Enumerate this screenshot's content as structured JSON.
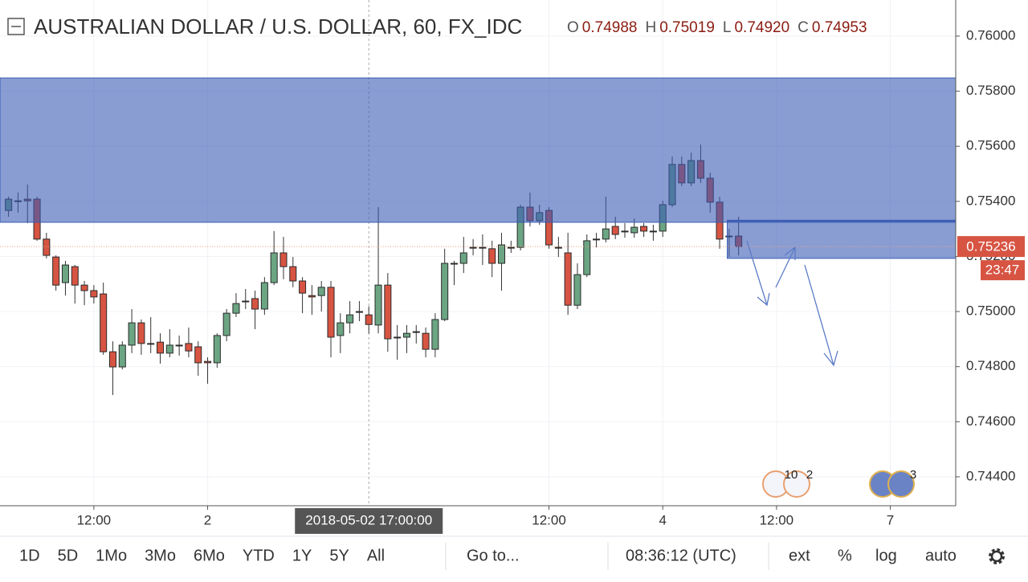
{
  "chart_data": {
    "type": "candlestick",
    "title": "AUSTRALIAN DOLLAR / U.S. DOLLAR, 60, FX_IDC",
    "ohlc_legend": [
      {
        "letter": "O",
        "value": "0.74988"
      },
      {
        "letter": "H",
        "value": "0.75019"
      },
      {
        "letter": "L",
        "value": "0.74920"
      },
      {
        "letter": "C",
        "value": "0.74953"
      }
    ],
    "categories": [
      null,
      null,
      null,
      null,
      null,
      null,
      null,
      null,
      null,
      null,
      null,
      null,
      null,
      null,
      null,
      null,
      null,
      null,
      null,
      null,
      null,
      null,
      null,
      null,
      null,
      null,
      null,
      null,
      null,
      null,
      null,
      null,
      null,
      null,
      null,
      null,
      null,
      null,
      "2018-05-02 17:00:00",
      null,
      null,
      null,
      null,
      null,
      null,
      null,
      null,
      null,
      null,
      null,
      null,
      null,
      null,
      null,
      null,
      null,
      null,
      null,
      null,
      null,
      null,
      null,
      null,
      null,
      null,
      null,
      null,
      null,
      null,
      null,
      null,
      null,
      null,
      null,
      null,
      null,
      null,
      null
    ],
    "open": [
      0.75367,
      0.75402,
      0.75408,
      0.75408,
      0.75263,
      0.75198,
      0.75105,
      0.75163,
      0.75096,
      0.75076,
      0.75064,
      0.74854,
      0.74799,
      0.74878,
      0.74959,
      0.74884,
      0.74889,
      0.74849,
      0.74878,
      0.74884,
      0.74872,
      0.74819,
      0.74814,
      0.74913,
      0.74994,
      0.75038,
      0.75047,
      0.75009,
      0.75105,
      0.75213,
      0.75163,
      0.75111,
      0.75058,
      0.75058,
      0.75088,
      0.74913,
      0.74959,
      0.75,
      0.74988,
      0.74951,
      0.75096,
      0.74907,
      0.74907,
      0.74927,
      0.74921,
      0.74863,
      0.74971,
      0.75175,
      0.75175,
      0.75233,
      0.75233,
      0.75228,
      0.75175,
      0.75233,
      0.75233,
      0.75379,
      0.7533,
      0.75367,
      0.75233,
      0.75213,
      0.75023,
      0.75134,
      0.75263,
      0.75263,
      0.75309,
      0.75292,
      0.75286,
      0.75309,
      0.75292,
      0.75292,
      0.75388,
      0.75534,
      0.75467,
      0.75548,
      0.75484,
      0.75397,
      0.75274,
      0.75274
    ],
    "high": [
      0.75417,
      0.75432,
      0.75461,
      0.75417,
      0.75286,
      0.75204,
      0.75184,
      0.75169,
      0.75111,
      0.75096,
      0.75105,
      0.74892,
      0.74892,
      0.75009,
      0.74971,
      0.7498,
      0.74921,
      0.74936,
      0.74913,
      0.74942,
      0.74892,
      0.74834,
      0.74921,
      0.75009,
      0.75067,
      0.75082,
      0.75076,
      0.75125,
      0.75292,
      0.75271,
      0.75198,
      0.75125,
      0.75096,
      0.75111,
      0.75111,
      0.74994,
      0.75038,
      0.75038,
      0.75019,
      0.75379,
      0.7514,
      0.74951,
      0.74951,
      0.74951,
      0.74942,
      0.74994,
      0.75228,
      0.75184,
      0.75271,
      0.75263,
      0.7528,
      0.75257,
      0.75286,
      0.75257,
      0.75388,
      0.75432,
      0.75388,
      0.75379,
      0.75271,
      0.75286,
      0.75175,
      0.7528,
      0.75286,
      0.75417,
      0.75344,
      0.75321,
      0.75338,
      0.75321,
      0.75315,
      0.75402,
      0.75563,
      0.75563,
      0.75577,
      0.75606,
      0.75504,
      0.75417,
      0.753,
      0.75344
    ],
    "low": [
      0.75344,
      0.75359,
      0.75321,
      0.75257,
      0.75193,
      0.75076,
      0.75058,
      0.75029,
      0.75023,
      0.75029,
      0.74843,
      0.74697,
      0.7479,
      0.74849,
      0.74843,
      0.74849,
      0.74811,
      0.74834,
      0.7484,
      0.74834,
      0.74767,
      0.74738,
      0.74796,
      0.74892,
      0.7498,
      0.75009,
      0.74936,
      0.74988,
      0.75096,
      0.75117,
      0.75088,
      0.74994,
      0.74988,
      0.75,
      0.74834,
      0.74849,
      0.74921,
      0.74965,
      0.7492,
      0.74921,
      0.74854,
      0.74825,
      0.74849,
      0.74884,
      0.74834,
      0.74834,
      0.74965,
      0.75096,
      0.7514,
      0.75204,
      0.75169,
      0.75125,
      0.75076,
      0.75213,
      0.75222,
      0.75309,
      0.75315,
      0.75228,
      0.75198,
      0.74988,
      0.75009,
      0.75125,
      0.75233,
      0.75251,
      0.75263,
      0.75268,
      0.75268,
      0.75271,
      0.75257,
      0.75271,
      0.75379,
      0.75455,
      0.75455,
      0.75467,
      0.75359,
      0.75228,
      0.75198,
      0.75204
    ],
    "close": [
      0.75408,
      0.75402,
      0.75402,
      0.75263,
      0.75204,
      0.75096,
      0.75169,
      0.75096,
      0.75076,
      0.75053,
      0.74854,
      0.74799,
      0.74878,
      0.74959,
      0.74884,
      0.74884,
      0.74849,
      0.74878,
      0.74878,
      0.74857,
      0.74814,
      0.74814,
      0.74913,
      0.74994,
      0.75029,
      0.75038,
      0.75009,
      0.75105,
      0.75213,
      0.75163,
      0.75111,
      0.75067,
      0.75053,
      0.75088,
      0.74907,
      0.74959,
      0.74988,
      0.75,
      0.74953,
      0.75096,
      0.74901,
      0.74907,
      0.74921,
      0.74927,
      0.74863,
      0.74971,
      0.75175,
      0.75175,
      0.75213,
      0.75233,
      0.75233,
      0.75175,
      0.75242,
      0.75233,
      0.75379,
      0.7533,
      0.75359,
      0.75242,
      0.75233,
      0.75023,
      0.75134,
      0.75257,
      0.75263,
      0.753,
      0.7528,
      0.75292,
      0.75306,
      0.75292,
      0.75292,
      0.75388,
      0.75534,
      0.75467,
      0.75548,
      0.75484,
      0.75397,
      0.75263,
      0.75274,
      0.75236
    ],
    "up_color": "#6ba583",
    "down_color": "#d75442",
    "zones": [
      {
        "high": 0.75848,
        "low": 0.75324,
        "start": -0.9,
        "color": "#3a5bb5"
      },
      {
        "high": 0.7533,
        "low": 0.75193,
        "start": 75.8,
        "color": "#3a5bb5"
      }
    ],
    "countdown": "23:47",
    "ylim": [
      0.74295,
      0.76131
    ],
    "yticks": [
      {
        "value": 0.744,
        "label": "0.74400"
      },
      {
        "value": 0.746,
        "label": "0.74600"
      },
      {
        "value": 0.748,
        "label": "0.74800"
      },
      {
        "value": 0.75,
        "label": "0.75000"
      },
      {
        "value": 0.752,
        "label": "0.75200"
      },
      {
        "value": 0.754,
        "label": "0.75400"
      },
      {
        "value": 0.756,
        "label": "0.75600"
      },
      {
        "value": 0.758,
        "label": "0.75800"
      },
      {
        "value": 0.76,
        "label": "0.76000"
      }
    ],
    "xlim": [
      -0.9,
      99.9
    ],
    "xticks": [
      {
        "value": 9,
        "label": "12:00"
      },
      {
        "value": 21,
        "label": "2"
      },
      {
        "value": 57,
        "label": "12:00"
      },
      {
        "value": 69,
        "label": "4"
      },
      {
        "value": 81,
        "label": "12:00"
      },
      {
        "value": 93,
        "label": "7"
      }
    ],
    "grid": true,
    "event_badges": [
      "10",
      "2",
      "3"
    ]
  },
  "toolbar": {
    "ranges": [
      "1D",
      "5D",
      "1Mo",
      "3Mo",
      "6Mo",
      "YTD",
      "1Y",
      "5Y",
      "All"
    ],
    "goto": "Go to...",
    "clock": "08:36:12 (UTC)",
    "options": [
      "ext",
      "%",
      "log",
      "auto"
    ]
  }
}
